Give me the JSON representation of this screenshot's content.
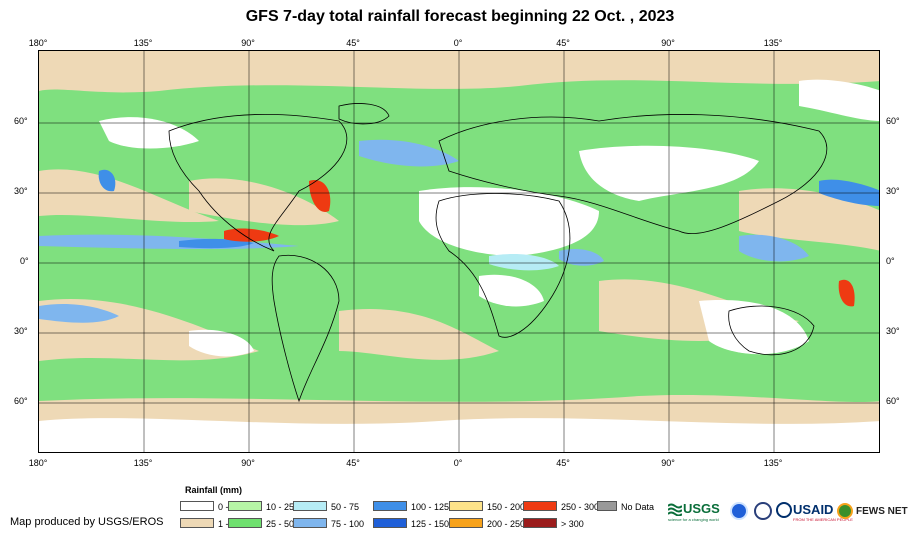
{
  "title": "GFS 7-day total rainfall forecast beginning 22 Oct. , 2023",
  "lon_labels": [
    "180°",
    "135°",
    "90°",
    "45°",
    "0°",
    "45°",
    "90°",
    "135°"
  ],
  "lat_labels": [
    "60°",
    "30°",
    "0°",
    "30°",
    "60°"
  ],
  "legend": {
    "title": "Rainfall (mm)",
    "items": [
      {
        "label": "0 - 1",
        "color": "#ffffff"
      },
      {
        "label": "1 - 10",
        "color": "#eed9b6"
      },
      {
        "label": "10 - 25",
        "color": "#b6f5a6"
      },
      {
        "label": "25 - 50",
        "color": "#6fe06f"
      },
      {
        "label": "50 - 75",
        "color": "#b6ecf5"
      },
      {
        "label": "75 - 100",
        "color": "#7fb6ee"
      },
      {
        "label": "100 - 125",
        "color": "#3f8fe8"
      },
      {
        "label": "125 - 150",
        "color": "#1f5fd8"
      },
      {
        "label": "150 - 200",
        "color": "#fde38a"
      },
      {
        "label": "200 - 250",
        "color": "#f7a21b"
      },
      {
        "label": "250 - 300",
        "color": "#ee3a12"
      },
      {
        "label": "> 300",
        "color": "#9b1c1c"
      },
      {
        "label": "No Data",
        "color": "#999999"
      }
    ]
  },
  "credit": "Map produced by USGS/EROS",
  "logos": {
    "usgs": "USGS",
    "usgs_tagline": "science for a changing world",
    "usaid": "USAID",
    "usaid_tagline": "FROM THE AMERICAN PEOPLE",
    "fewsnet": "FEWS NET"
  }
}
